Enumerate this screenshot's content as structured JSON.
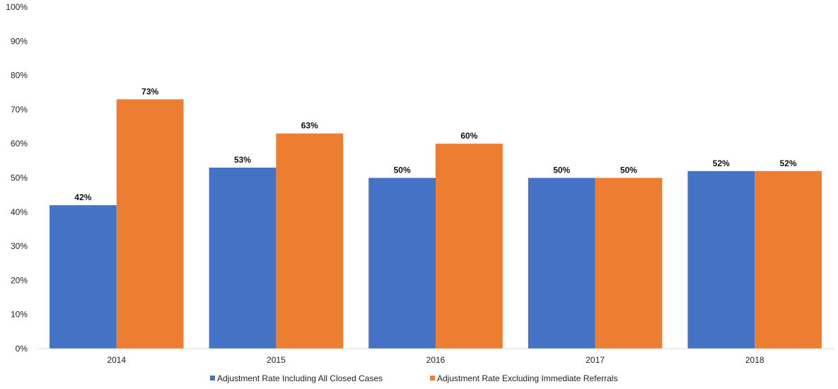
{
  "chart_data": {
    "type": "bar",
    "categories": [
      "2014",
      "2015",
      "2016",
      "2017",
      "2018"
    ],
    "series": [
      {
        "name": "Adjustment Rate Including All Closed Cases",
        "values": [
          42,
          53,
          50,
          50,
          52
        ],
        "labels": [
          "42%",
          "53%",
          "50%",
          "50%",
          "52%"
        ],
        "color": "#4472C4"
      },
      {
        "name": "Adjustment Rate Excluding Immediate Referrals",
        "values": [
          73,
          63,
          60,
          50,
          52
        ],
        "labels": [
          "73%",
          "63%",
          "60%",
          "50%",
          "52%"
        ],
        "color": "#ED7D31"
      }
    ],
    "y_ticks": [
      "0%",
      "10%",
      "20%",
      "30%",
      "40%",
      "50%",
      "60%",
      "70%",
      "80%",
      "90%",
      "100%"
    ],
    "ylim": [
      0,
      100
    ],
    "grid": false,
    "legend_position": "bottom"
  }
}
